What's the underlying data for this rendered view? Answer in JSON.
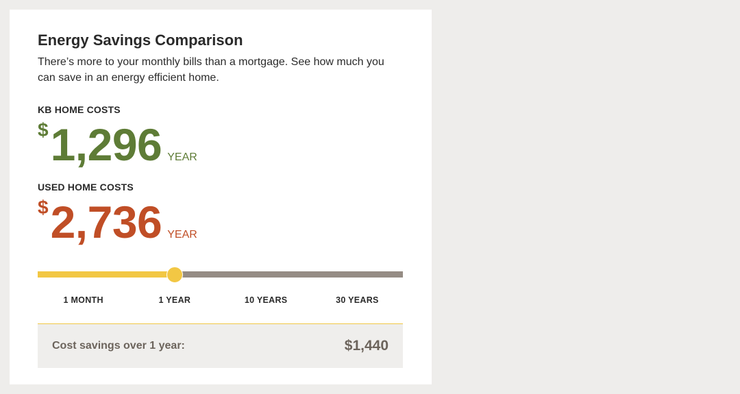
{
  "widget": {
    "title": "Energy Savings Comparison",
    "description": "There’s more to your monthly bills than a mortgage. See how much you can save in an energy efficient home."
  },
  "kb_home": {
    "label": "KB HOME COSTS",
    "currency": "$",
    "amount": "1,296",
    "period": "YEAR",
    "color": "#5e7c36"
  },
  "used_home": {
    "label": "USED HOME COSTS",
    "currency": "$",
    "amount": "2,736",
    "period": "YEAR",
    "color": "#c04e26"
  },
  "slider": {
    "options": [
      "1 MONTH",
      "1 YEAR",
      "10 YEARS",
      "30 YEARS"
    ],
    "selected_index": 1,
    "selected_label": "1 YEAR",
    "fill_color": "#f2c744",
    "track_color": "#958c84"
  },
  "savings": {
    "label": "Cost savings over 1 year:",
    "value": "$1,440"
  }
}
